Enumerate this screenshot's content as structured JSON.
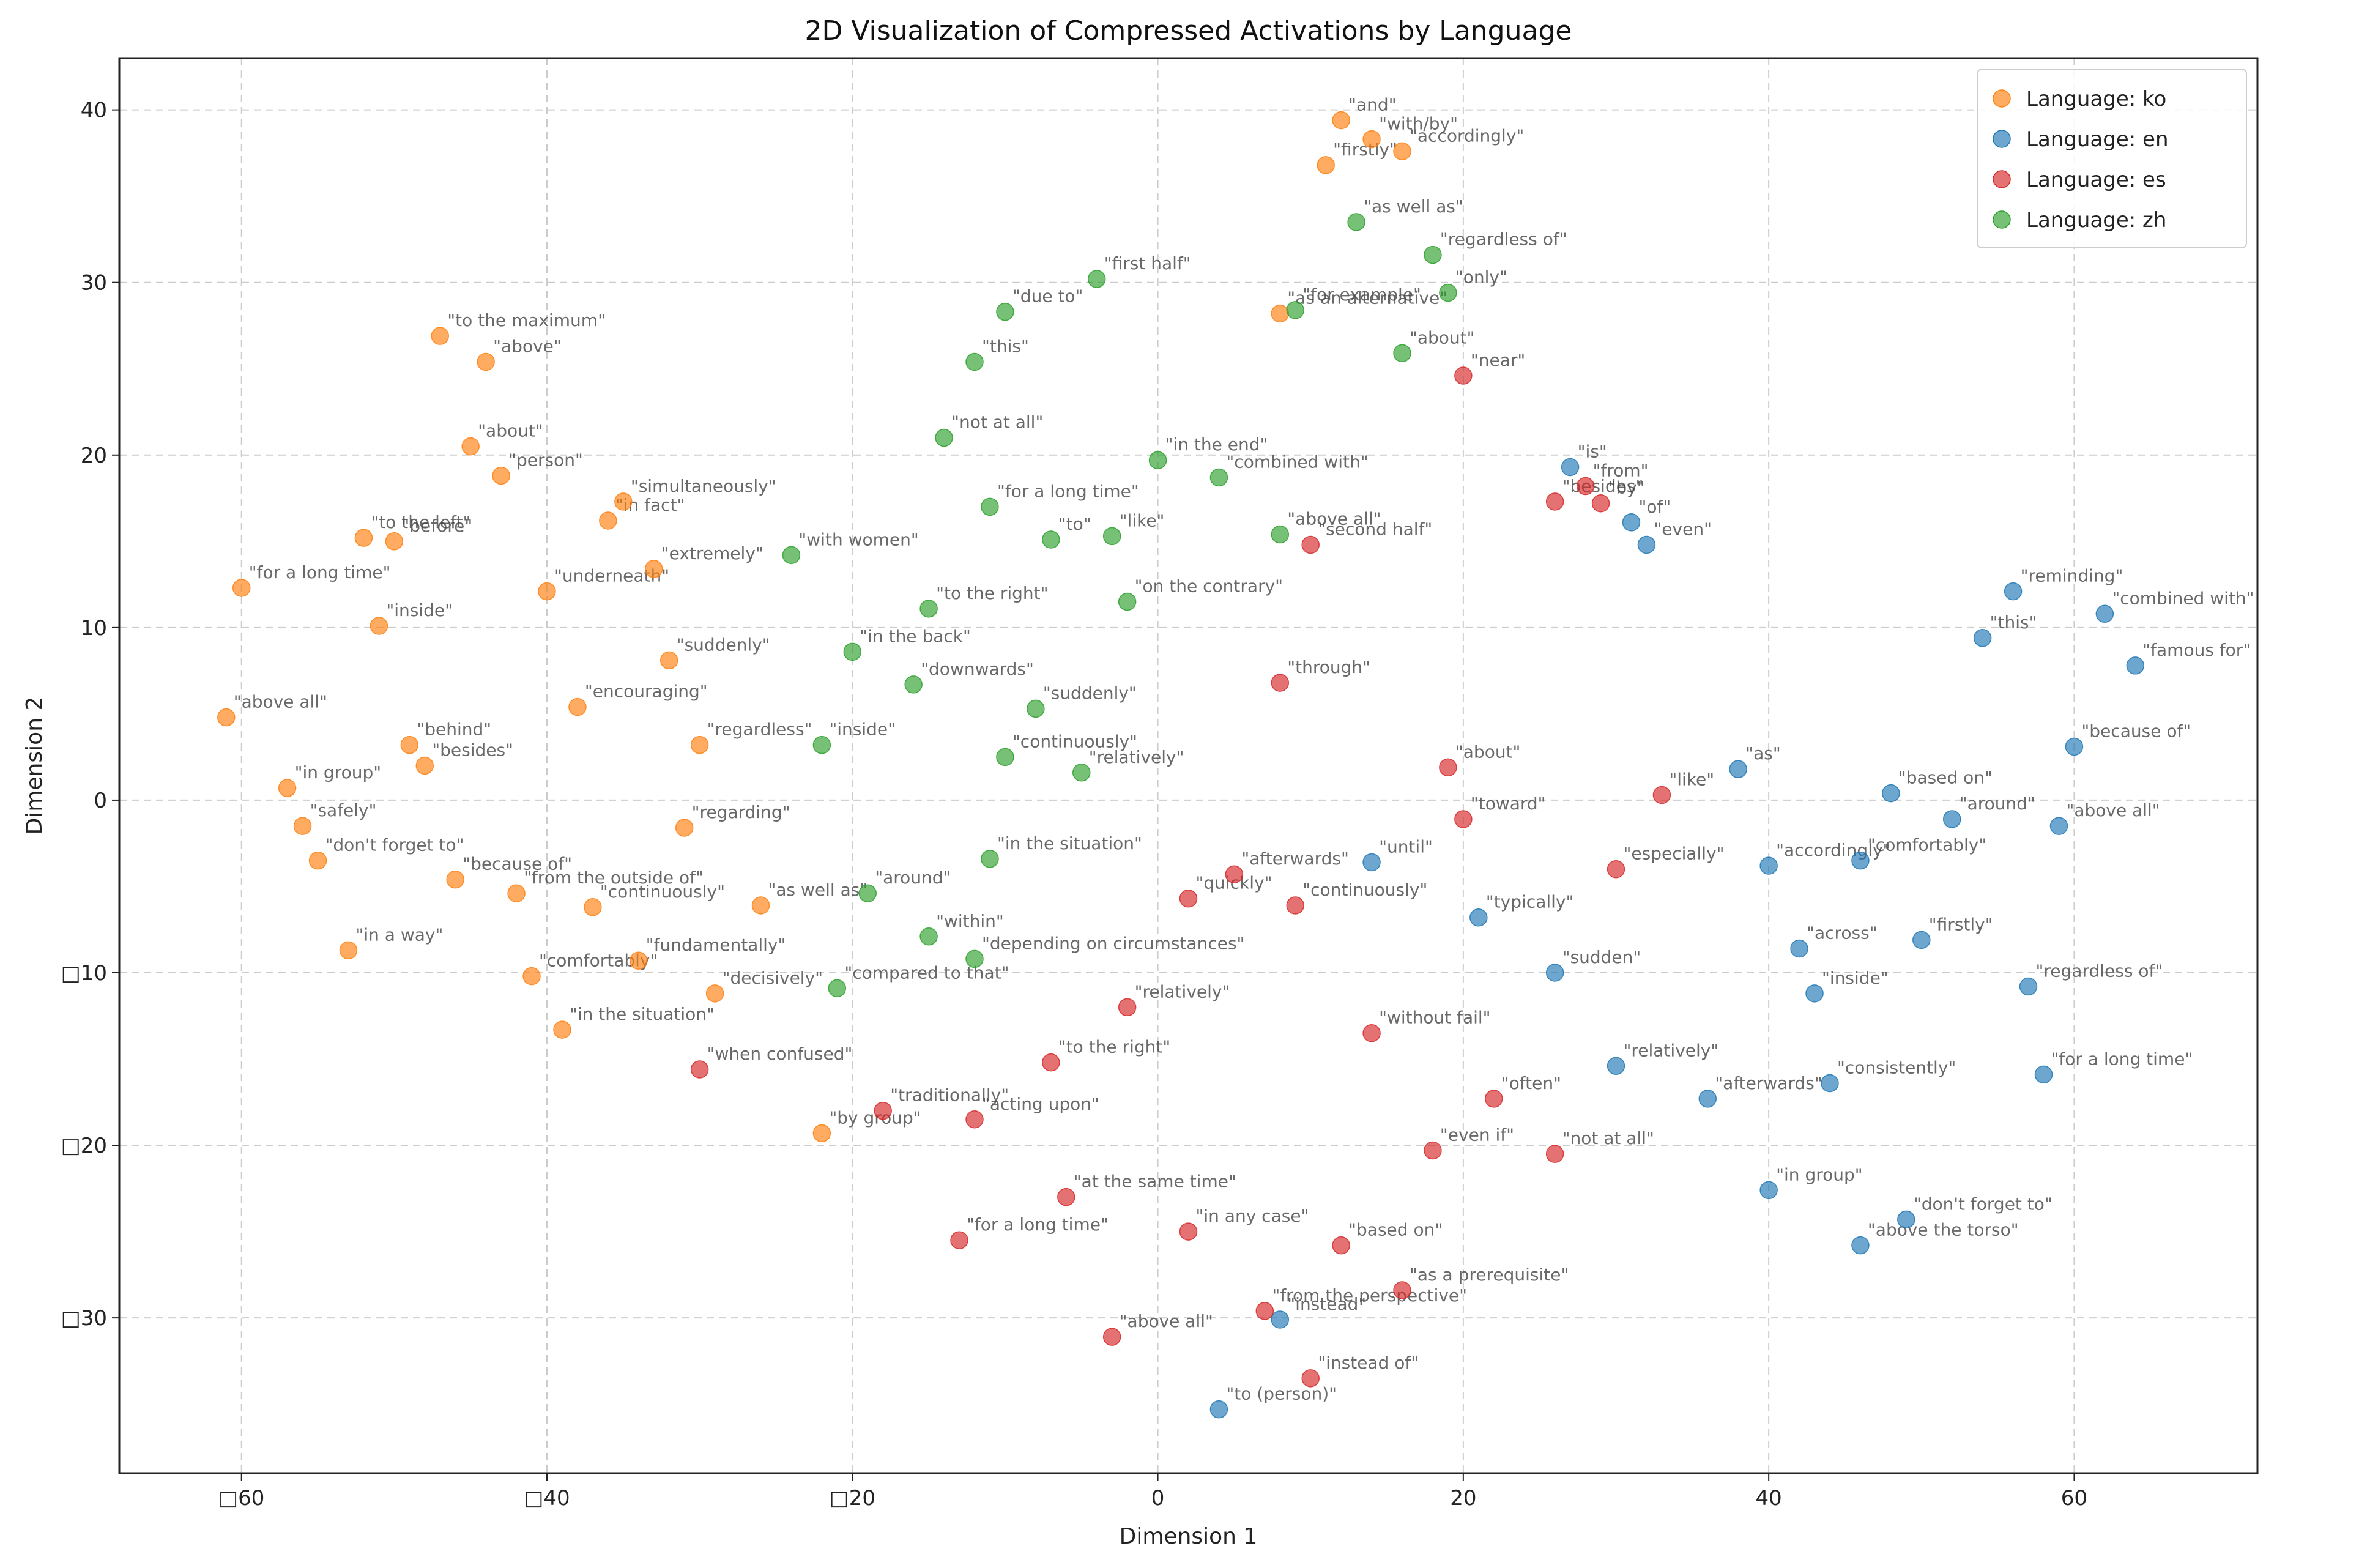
{
  "chart_data": {
    "type": "scatter",
    "title": "2D Visualization of Compressed Activations by Language",
    "xlabel": "Dimension 1",
    "ylabel": "Dimension 2",
    "xlim": [
      -68,
      72
    ],
    "ylim": [
      -39,
      43
    ],
    "xticks": [
      -60,
      -40,
      -20,
      0,
      20,
      40,
      60
    ],
    "yticks": [
      -30,
      -20,
      -10,
      0,
      10,
      20,
      30,
      40
    ],
    "xtick_labels": [
      "□60",
      "□40",
      "□20",
      "0",
      "20",
      "40",
      "60"
    ],
    "ytick_labels": [
      "□30",
      "□20",
      "□10",
      "0",
      "10",
      "20",
      "30",
      "40"
    ],
    "grid": true,
    "legend_position": "top-right",
    "series": [
      {
        "name": "Language: ko",
        "color": "#ff7f0e",
        "points": [
          {
            "x": -61,
            "y": 4.8,
            "label": "\"above all\""
          },
          {
            "x": -60,
            "y": 12.3,
            "label": "\"for a long time\""
          },
          {
            "x": -57,
            "y": 0.7,
            "label": "\"in group\""
          },
          {
            "x": -56,
            "y": -1.5,
            "label": "\"safely\""
          },
          {
            "x": -55,
            "y": -3.5,
            "label": "\"don't forget to\""
          },
          {
            "x": -53,
            "y": -8.7,
            "label": "\"in a way\""
          },
          {
            "x": -52,
            "y": 15.2,
            "label": "\"to the left\""
          },
          {
            "x": -51,
            "y": 10.1,
            "label": "\"inside\""
          },
          {
            "x": -50,
            "y": 15.0,
            "label": "\"before\""
          },
          {
            "x": -49,
            "y": 3.2,
            "label": "\"behind\""
          },
          {
            "x": -48,
            "y": 2.0,
            "label": "\"besides\""
          },
          {
            "x": -47,
            "y": 26.9,
            "label": "\"to the maximum\""
          },
          {
            "x": -46,
            "y": -4.6,
            "label": "\"because of\""
          },
          {
            "x": -45,
            "y": 20.5,
            "label": "\"about\""
          },
          {
            "x": -44,
            "y": 25.4,
            "label": "\"above\""
          },
          {
            "x": -43,
            "y": 18.8,
            "label": "\"person\""
          },
          {
            "x": -42,
            "y": -5.4,
            "label": "\"from the outside of\""
          },
          {
            "x": -41,
            "y": -10.2,
            "label": "\"comfortably\""
          },
          {
            "x": -40,
            "y": 12.1,
            "label": "\"underneath\""
          },
          {
            "x": -39,
            "y": -13.3,
            "label": "\"in the situation\""
          },
          {
            "x": -38,
            "y": 5.4,
            "label": "\"encouraging\""
          },
          {
            "x": -37,
            "y": -6.2,
            "label": "\"continuously\""
          },
          {
            "x": -36,
            "y": 16.2,
            "label": "\"in fact\""
          },
          {
            "x": -35,
            "y": 17.3,
            "label": "\"simultaneously\""
          },
          {
            "x": -34,
            "y": -9.3,
            "label": "\"fundamentally\""
          },
          {
            "x": -33,
            "y": 13.4,
            "label": "\"extremely\""
          },
          {
            "x": -32,
            "y": 8.1,
            "label": "\"suddenly\""
          },
          {
            "x": -31,
            "y": -1.6,
            "label": "\"regarding\""
          },
          {
            "x": -30,
            "y": 3.2,
            "label": "\"regardless\""
          },
          {
            "x": -29,
            "y": -11.2,
            "label": "\"decisively\""
          },
          {
            "x": -26,
            "y": -6.1,
            "label": "\"as well as\""
          },
          {
            "x": -22,
            "y": -19.3,
            "label": "\"by group\""
          },
          {
            "x": 11,
            "y": 36.8,
            "label": "\"firstly\""
          },
          {
            "x": 12,
            "y": 39.4,
            "label": "\"and\""
          },
          {
            "x": 14,
            "y": 38.3,
            "label": "\"with/by\""
          },
          {
            "x": 16,
            "y": 37.6,
            "label": "\"accordingly\""
          },
          {
            "x": 8,
            "y": 28.2,
            "label": "\"as an alternative\""
          }
        ]
      },
      {
        "name": "Language: en",
        "color": "#1f77b4",
        "points": [
          {
            "x": 27,
            "y": 19.3,
            "label": "\"is\""
          },
          {
            "x": 31,
            "y": 16.1,
            "label": "\"of\""
          },
          {
            "x": 32,
            "y": 14.8,
            "label": "\"even\""
          },
          {
            "x": 38,
            "y": 1.8,
            "label": "\"as\""
          },
          {
            "x": 40,
            "y": -3.8,
            "label": "\"accordingly\""
          },
          {
            "x": 42,
            "y": -8.6,
            "label": "\"across\""
          },
          {
            "x": 43,
            "y": -11.2,
            "label": "\"inside\""
          },
          {
            "x": 44,
            "y": -16.4,
            "label": "\"consistently\""
          },
          {
            "x": 46,
            "y": -3.5,
            "label": "\"comfortably\""
          },
          {
            "x": 48,
            "y": 0.4,
            "label": "\"based on\""
          },
          {
            "x": 50,
            "y": -8.1,
            "label": "\"firstly\""
          },
          {
            "x": 52,
            "y": -1.1,
            "label": "\"around\""
          },
          {
            "x": 54,
            "y": 9.4,
            "label": "\"this\""
          },
          {
            "x": 56,
            "y": 12.1,
            "label": "\"reminding\""
          },
          {
            "x": 57,
            "y": -10.8,
            "label": "\"regardless of\""
          },
          {
            "x": 59,
            "y": -1.5,
            "label": "\"above all\""
          },
          {
            "x": 60,
            "y": 3.1,
            "label": "\"because of\""
          },
          {
            "x": 62,
            "y": 10.8,
            "label": "\"combined with\""
          },
          {
            "x": 64,
            "y": 7.8,
            "label": "\"famous for\""
          },
          {
            "x": 58,
            "y": -15.9,
            "label": "\"for a long time\""
          },
          {
            "x": 46,
            "y": -25.8,
            "label": "\"above the torso\""
          },
          {
            "x": 49,
            "y": -24.3,
            "label": "\"don't forget to\""
          },
          {
            "x": 40,
            "y": -22.6,
            "label": "\"in group\""
          },
          {
            "x": 36,
            "y": -17.3,
            "label": "\"afterwards\""
          },
          {
            "x": 30,
            "y": -15.4,
            "label": "\"relatively\""
          },
          {
            "x": 26,
            "y": -10.0,
            "label": "\"sudden\""
          },
          {
            "x": 21,
            "y": -6.8,
            "label": "\"typically\""
          },
          {
            "x": 14,
            "y": -3.6,
            "label": "\"until\""
          },
          {
            "x": 8,
            "y": -30.1,
            "label": "\"instead\""
          },
          {
            "x": 4,
            "y": -35.3,
            "label": "\"to (person)\""
          }
        ]
      },
      {
        "name": "Language: es",
        "color": "#d62728",
        "points": [
          {
            "x": 26,
            "y": 17.3,
            "label": "\"besides\""
          },
          {
            "x": 28,
            "y": 18.2,
            "label": "\"from\""
          },
          {
            "x": 29,
            "y": 17.2,
            "label": "\"by\""
          },
          {
            "x": 20,
            "y": 24.6,
            "label": "\"near\""
          },
          {
            "x": 10,
            "y": 14.8,
            "label": "\"second half\""
          },
          {
            "x": 8,
            "y": 6.8,
            "label": "\"through\""
          },
          {
            "x": 19,
            "y": 1.9,
            "label": "\"about\""
          },
          {
            "x": 20,
            "y": -1.1,
            "label": "\"toward\""
          },
          {
            "x": 30,
            "y": -4.0,
            "label": "\"especially\""
          },
          {
            "x": 33,
            "y": 0.3,
            "label": "\"like\""
          },
          {
            "x": 5,
            "y": -4.3,
            "label": "\"afterwards\""
          },
          {
            "x": 2,
            "y": -5.7,
            "label": "\"quickly\""
          },
          {
            "x": 9,
            "y": -6.1,
            "label": "\"continuously\""
          },
          {
            "x": -2,
            "y": -12.0,
            "label": "\"relatively\""
          },
          {
            "x": -7,
            "y": -15.2,
            "label": "\"to the right\""
          },
          {
            "x": -12,
            "y": -18.5,
            "label": "\"acting upon\""
          },
          {
            "x": -18,
            "y": -18.0,
            "label": "\"traditionally\""
          },
          {
            "x": -30,
            "y": -15.6,
            "label": "\"when confused\""
          },
          {
            "x": -13,
            "y": -25.5,
            "label": "\"for a long time\""
          },
          {
            "x": -6,
            "y": -23.0,
            "label": "\"at the same time\""
          },
          {
            "x": -3,
            "y": -31.1,
            "label": "\"above all\""
          },
          {
            "x": 2,
            "y": -25.0,
            "label": "\"in any case\""
          },
          {
            "x": 7,
            "y": -29.6,
            "label": "\"from the perspective\""
          },
          {
            "x": 10,
            "y": -33.5,
            "label": "\"instead of\""
          },
          {
            "x": 12,
            "y": -25.8,
            "label": "\"based on\""
          },
          {
            "x": 16,
            "y": -28.4,
            "label": "\"as a prerequisite\""
          },
          {
            "x": 18,
            "y": -20.3,
            "label": "\"even if\""
          },
          {
            "x": 22,
            "y": -17.3,
            "label": "\"often\""
          },
          {
            "x": 26,
            "y": -20.5,
            "label": "\"not at all\""
          },
          {
            "x": 14,
            "y": -13.5,
            "label": "\"without fail\""
          }
        ]
      },
      {
        "name": "Language: zh",
        "color": "#2ca02c",
        "points": [
          {
            "x": 13,
            "y": 33.5,
            "label": "\"as well as\""
          },
          {
            "x": 18,
            "y": 31.6,
            "label": "\"regardless of\""
          },
          {
            "x": 19,
            "y": 29.4,
            "label": "\"only\""
          },
          {
            "x": 16,
            "y": 25.9,
            "label": "\"about\""
          },
          {
            "x": 9,
            "y": 28.4,
            "label": "\"for example\""
          },
          {
            "x": -4,
            "y": 30.2,
            "label": "\"first half\""
          },
          {
            "x": -10,
            "y": 28.3,
            "label": "\"due to\""
          },
          {
            "x": -12,
            "y": 25.4,
            "label": "\"this\""
          },
          {
            "x": -14,
            "y": 21.0,
            "label": "\"not at all\""
          },
          {
            "x": -11,
            "y": 17.0,
            "label": "\"for a long time\""
          },
          {
            "x": -7,
            "y": 15.1,
            "label": "\"to\""
          },
          {
            "x": -3,
            "y": 15.3,
            "label": "\"like\""
          },
          {
            "x": 0,
            "y": 19.7,
            "label": "\"in the end\""
          },
          {
            "x": 4,
            "y": 18.7,
            "label": "\"combined with\""
          },
          {
            "x": 8,
            "y": 15.4,
            "label": "\"above all\""
          },
          {
            "x": -24,
            "y": 14.2,
            "label": "\"with women\""
          },
          {
            "x": -15,
            "y": 11.1,
            "label": "\"to the right\""
          },
          {
            "x": -20,
            "y": 8.6,
            "label": "\"in the back\""
          },
          {
            "x": -16,
            "y": 6.7,
            "label": "\"downwards\""
          },
          {
            "x": -22,
            "y": 3.2,
            "label": "\"inside\""
          },
          {
            "x": -10,
            "y": 2.5,
            "label": "\"continuously\""
          },
          {
            "x": -5,
            "y": 1.6,
            "label": "\"relatively\""
          },
          {
            "x": -11,
            "y": -3.4,
            "label": "\"in the situation\""
          },
          {
            "x": -19,
            "y": -5.4,
            "label": "\"around\""
          },
          {
            "x": -15,
            "y": -7.9,
            "label": "\"within\""
          },
          {
            "x": -21,
            "y": -10.9,
            "label": "\"compared to that\""
          },
          {
            "x": -12,
            "y": -9.2,
            "label": "\"depending on circumstances\""
          },
          {
            "x": -8,
            "y": 5.3,
            "label": "\"suddenly\""
          },
          {
            "x": -2,
            "y": 11.5,
            "label": "\"on the contrary\""
          }
        ]
      }
    ]
  }
}
